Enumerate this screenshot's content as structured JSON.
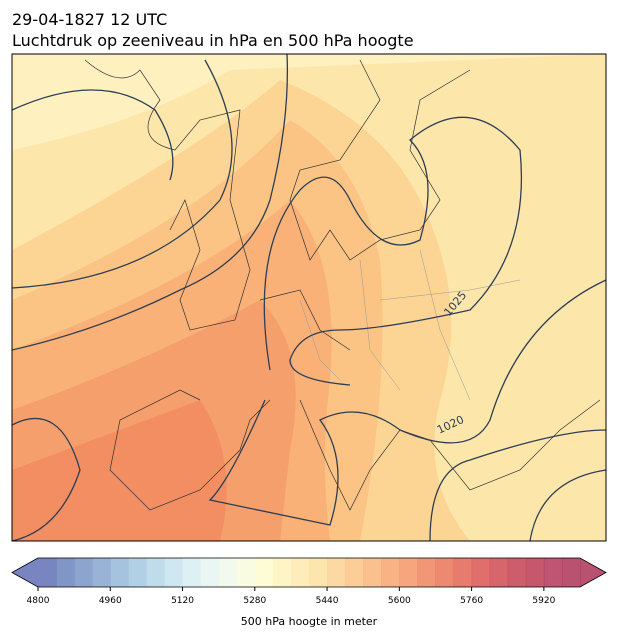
{
  "header": {
    "time": "29-04-1827 12 UTC",
    "title": "Luchtdruk op zeeniveau in hPa en 500 hPa hoogte"
  },
  "isobar_labels": [
    1025,
    1020
  ],
  "colorbar": {
    "label": "500 hPa hoogte in meter",
    "lim": [
      4800,
      6000
    ],
    "ticks": [
      4800,
      4960,
      5120,
      5280,
      5440,
      5600,
      5760,
      5920
    ],
    "colors": [
      "#6270b6",
      "#6b82bd",
      "#7894c6",
      "#86a6cf",
      "#95b8d8",
      "#a5c8e0",
      "#b5d6e8",
      "#c6e3ef",
      "#d7eef3",
      "#e6f4f2",
      "#f0f8ea",
      "#f8fbdb",
      "#fefbcd",
      "#fef3bd",
      "#feeaae",
      "#fde0a0",
      "#fcd292",
      "#fbc485",
      "#f9b57a",
      "#f7a56f",
      "#f49566",
      "#f0855e",
      "#ea7458",
      "#e36454",
      "#da5552",
      "#d04a52",
      "#c64152",
      "#bc3a53",
      "#b5365a",
      "#ad3358"
    ]
  }
}
